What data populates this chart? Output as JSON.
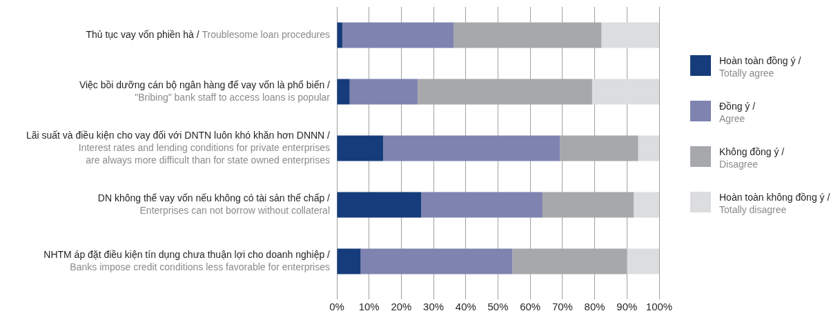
{
  "chart_data": {
    "type": "bar",
    "orientation": "horizontal",
    "stacked": true,
    "categories": [
      "Thủ tục vay vốn phiền hà / Troublesome loan procedures",
      "Việc bồi dưỡng cán bộ ngân hàng để vay vốn là phổ biến / \"Bribing\" bank staff to access loans is popular",
      "Lãi suất và điều kiện cho vay đối với DNTN luôn khó khăn hơn DNNN / Interest rates and lending conditions for private enterprises are always more difficult than for state owned enterprises",
      "DN không thể vay vốn nếu không có tài sản thế chấp / Enterprises can not borrow without collateral",
      "NHTM áp đặt điều kiện tín dụng chưa thuận lợi cho doanh nghiệp / Banks impose credit conditions less favorable for enterprises"
    ],
    "series": [
      {
        "name": "Hoàn toàn đồng ý / Totally agree",
        "color": "#173c7c",
        "values": [
          1.7,
          4.0,
          14.4,
          26.2,
          7.4
        ]
      },
      {
        "name": "Đồng ý / Agree",
        "color": "#7f83af",
        "values": [
          34.5,
          21.1,
          54.8,
          37.6,
          47.1
        ]
      },
      {
        "name": "Không đồng ý / Disagree",
        "color": "#a7a8ac",
        "values": [
          45.9,
          54.1,
          24.3,
          28.3,
          35.5
        ]
      },
      {
        "name": "Hoàn toàn không đồng ý / Totally disagree",
        "color": "#dcdddf",
        "values": [
          17.9,
          20.8,
          6.5,
          7.9,
          10.0
        ]
      }
    ],
    "xlim": [
      0,
      100
    ],
    "xticks": [
      {
        "value": 0,
        "label": "0%"
      },
      {
        "value": 10,
        "label": "10%"
      },
      {
        "value": 20,
        "label": "20%"
      },
      {
        "value": 30,
        "label": "30%"
      },
      {
        "value": 40,
        "label": "40%"
      },
      {
        "value": 50,
        "label": "50%"
      },
      {
        "value": 60,
        "label": "60%"
      },
      {
        "value": 70,
        "label": "70%"
      },
      {
        "value": 80,
        "label": "80%"
      },
      {
        "value": 90,
        "label": "90%"
      },
      {
        "value": 100,
        "label": "100%"
      }
    ],
    "grid": "x",
    "legend": "right"
  }
}
